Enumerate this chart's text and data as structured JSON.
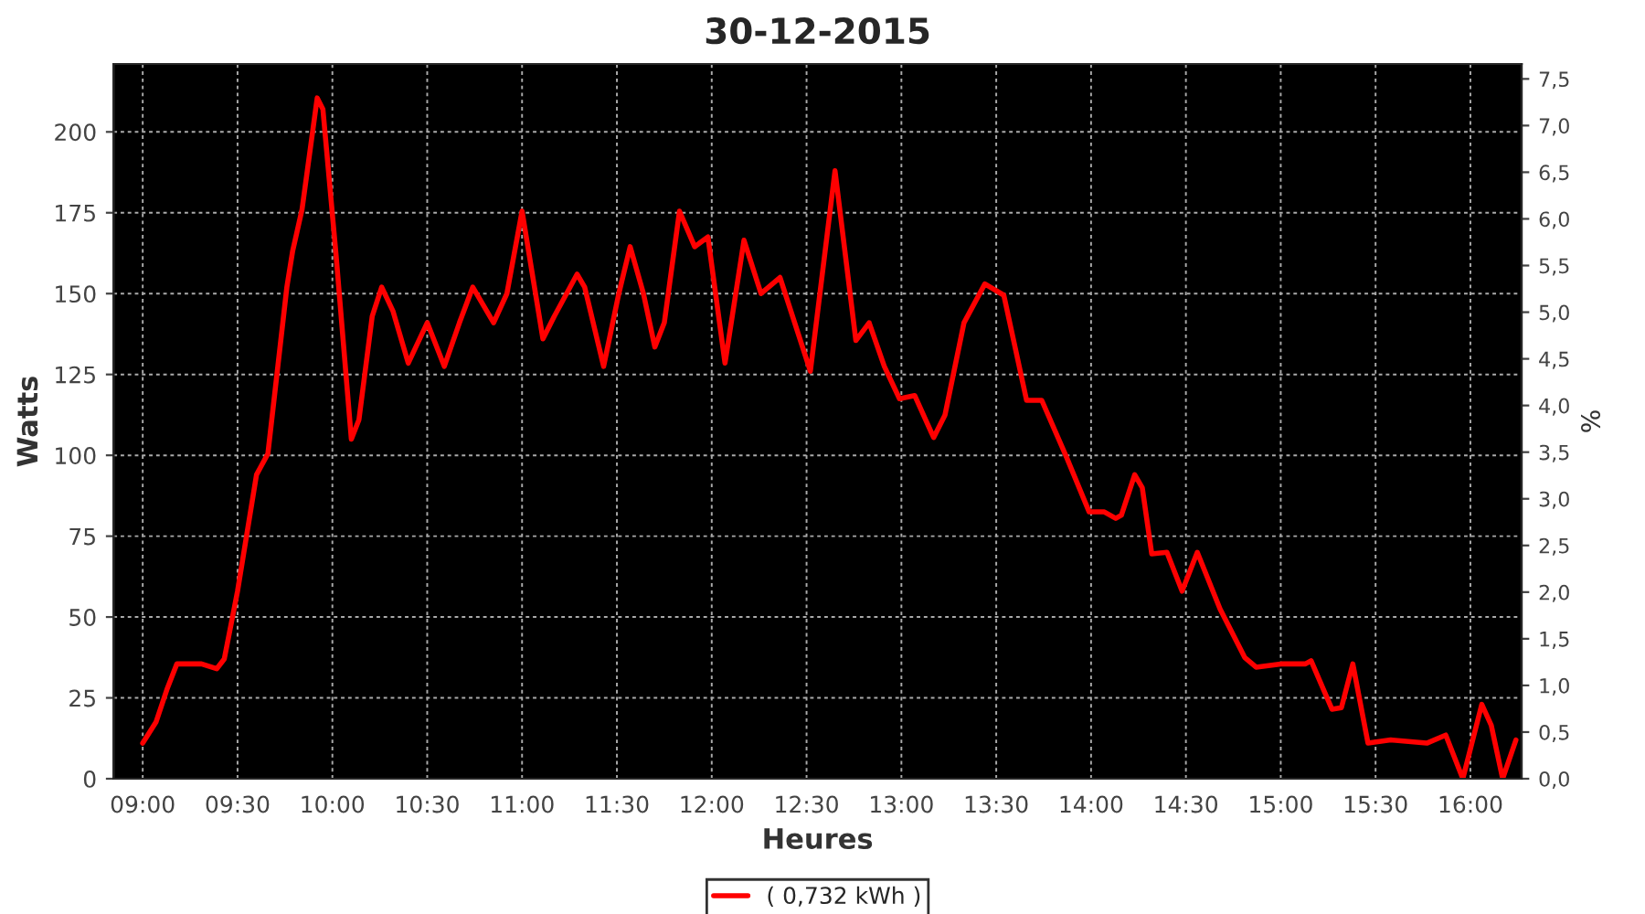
{
  "chart_data": {
    "type": "line",
    "title": "30-12-2015",
    "xlabel": "Heures",
    "ylabel": "Watts",
    "y2label": "%",
    "xlim": [
      8.846,
      16.27
    ],
    "ylim": [
      0,
      221
    ],
    "y2lim": [
      0,
      7.66
    ],
    "xticks": [
      {
        "value": 9,
        "label": "09:00"
      },
      {
        "value": 9.5,
        "label": "09:30"
      },
      {
        "value": 10,
        "label": "10:00"
      },
      {
        "value": 10.5,
        "label": "10:30"
      },
      {
        "value": 11,
        "label": "11:00"
      },
      {
        "value": 11.5,
        "label": "11:30"
      },
      {
        "value": 12,
        "label": "12:00"
      },
      {
        "value": 12.5,
        "label": "12:30"
      },
      {
        "value": 13,
        "label": "13:00"
      },
      {
        "value": 13.5,
        "label": "13:30"
      },
      {
        "value": 14,
        "label": "14:00"
      },
      {
        "value": 14.5,
        "label": "14:30"
      },
      {
        "value": 15,
        "label": "15:00"
      },
      {
        "value": 15.5,
        "label": "15:30"
      },
      {
        "value": 16,
        "label": "16:00"
      }
    ],
    "yticks": [
      0,
      25,
      50,
      75,
      100,
      125,
      150,
      175,
      200
    ],
    "y2ticks": [
      {
        "value": 0,
        "label": "0,0"
      },
      {
        "value": 0.5,
        "label": "0,5"
      },
      {
        "value": 1,
        "label": "1,0"
      },
      {
        "value": 1.5,
        "label": "1,5"
      },
      {
        "value": 2,
        "label": "2,0"
      },
      {
        "value": 2.5,
        "label": "2,5"
      },
      {
        "value": 3,
        "label": "3,0"
      },
      {
        "value": 3.5,
        "label": "3,5"
      },
      {
        "value": 4,
        "label": "4,0"
      },
      {
        "value": 4.5,
        "label": "4,5"
      },
      {
        "value": 5,
        "label": "5,0"
      },
      {
        "value": 5.5,
        "label": "5,5"
      },
      {
        "value": 6,
        "label": "6,0"
      },
      {
        "value": 6.5,
        "label": "6,5"
      },
      {
        "value": 7,
        "label": "7,0"
      },
      {
        "value": 7.5,
        "label": "7,5"
      }
    ],
    "grid": true,
    "legend": "bottom",
    "line_style": "solid",
    "series": [
      {
        "name": "( 0,732 kWh )",
        "color": "#ff0000",
        "x": [
          9.0,
          9.07,
          9.13,
          9.18,
          9.24,
          9.31,
          9.39,
          9.43,
          9.5,
          9.6,
          9.66,
          9.76,
          9.79,
          9.84,
          9.92,
          9.95,
          10.02,
          10.1,
          10.14,
          10.21,
          10.26,
          10.32,
          10.4,
          10.5,
          10.59,
          10.67,
          10.74,
          10.85,
          10.92,
          11.0,
          11.11,
          11.17,
          11.29,
          11.33,
          11.43,
          11.51,
          11.57,
          11.64,
          11.7,
          11.75,
          11.83,
          11.91,
          11.98,
          12.07,
          12.17,
          12.26,
          12.36,
          12.52,
          12.65,
          12.76,
          12.83,
          12.91,
          12.99,
          13.07,
          13.17,
          13.23,
          13.33,
          13.44,
          13.54,
          13.66,
          13.74,
          13.87,
          13.99,
          14.07,
          14.13,
          14.16,
          14.23,
          14.27,
          14.32,
          14.4,
          14.48,
          14.56,
          14.68,
          14.81,
          14.87,
          15.0,
          15.13,
          15.16,
          15.27,
          15.32,
          15.38,
          15.46,
          15.58,
          15.77,
          15.87,
          15.96,
          16.06,
          16.11,
          16.17,
          16.24
        ],
        "values": [
          11,
          17.5,
          28,
          35.5,
          35.5,
          35.5,
          34,
          37,
          58,
          94,
          100.5,
          152,
          163,
          176,
          210.5,
          207,
          161.5,
          105,
          111,
          143,
          152,
          144.5,
          128.5,
          141,
          127.5,
          141,
          152,
          141,
          150,
          175.5,
          136,
          143,
          156,
          152,
          127.5,
          150,
          164.5,
          150,
          133.5,
          141,
          175.5,
          164.5,
          167.5,
          128.5,
          166.5,
          150,
          155,
          126,
          188,
          135.5,
          141,
          127.5,
          117.5,
          118.5,
          105.5,
          112.5,
          141,
          153,
          149.5,
          117,
          117,
          99.5,
          82.5,
          82.5,
          80.5,
          81.5,
          94,
          90,
          69.5,
          70,
          58,
          70,
          52.5,
          37.5,
          34.5,
          35.5,
          35.5,
          36.5,
          21.5,
          22,
          35.5,
          11,
          12,
          11,
          13.5,
          0,
          23,
          16.5,
          0,
          12
        ]
      }
    ]
  }
}
